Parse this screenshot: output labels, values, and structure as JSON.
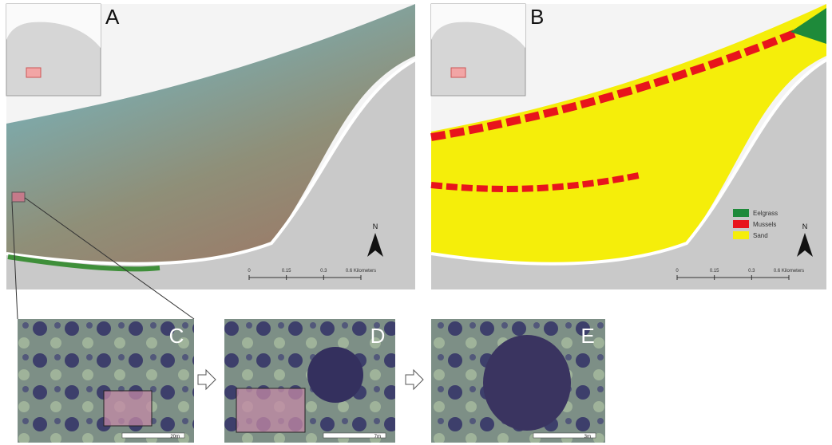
{
  "panels": [
    {
      "label": "A",
      "scale_labels": [
        "0",
        "0.15",
        "0.3",
        "0.6 Kilometers"
      ],
      "north": "N"
    },
    {
      "label": "B",
      "scale_labels": [
        "0",
        "0.15",
        "0.3",
        "0.6 Kilometers"
      ],
      "north": "N"
    },
    {
      "label": "C",
      "scale_label": "20m"
    },
    {
      "label": "D",
      "scale_label": "7m"
    },
    {
      "label": "E",
      "scale_label": "3m"
    }
  ],
  "legend": [
    {
      "label": "Eelgrass",
      "color": "#1e8a3a"
    },
    {
      "label": "Mussels",
      "color": "#e8141c"
    },
    {
      "label": "Sand",
      "color": "#f5ee0a"
    }
  ]
}
